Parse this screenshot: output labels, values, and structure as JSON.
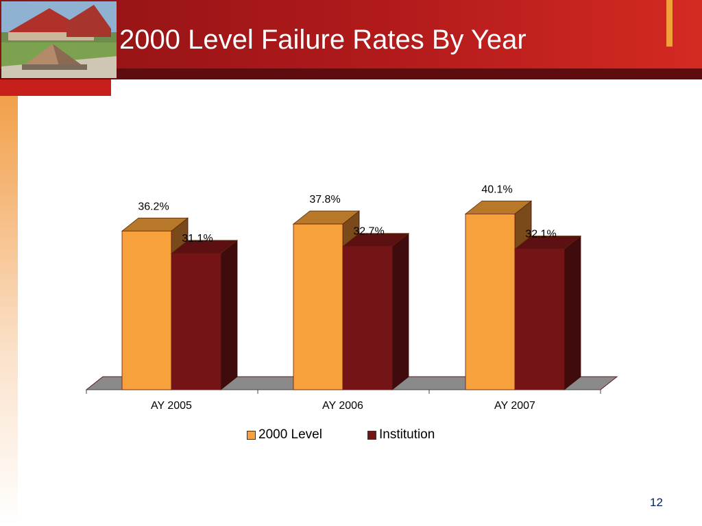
{
  "slide": {
    "title": "2000 Level Failure Rates By Year",
    "page_number": "12"
  },
  "colors": {
    "header_red": "#b11a1b",
    "header_dark": "#5e0c0e",
    "accent_orange": "#f2a03a",
    "series_2000": "#f7a13c",
    "series_institution": "#741417"
  },
  "chart_data": {
    "type": "bar",
    "categories": [
      "AY 2005",
      "AY 2006",
      "AY 2007"
    ],
    "series": [
      {
        "name": "2000 Level",
        "values": [
          36.2,
          37.8,
          40.1
        ],
        "labels": [
          "36.2%",
          "37.8%",
          "40.1%"
        ]
      },
      {
        "name": "Institution",
        "values": [
          31.1,
          32.7,
          32.1
        ],
        "labels": [
          "31.1%",
          "32.7%",
          "32.1%"
        ]
      }
    ],
    "ylim": [
      0,
      45
    ],
    "grid": false,
    "legend_position": "bottom",
    "style": "3d-clustered-column"
  }
}
